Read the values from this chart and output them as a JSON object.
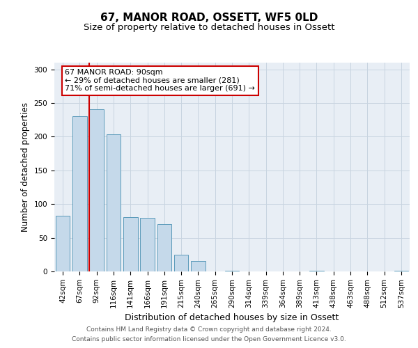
{
  "title": "67, MANOR ROAD, OSSETT, WF5 0LD",
  "subtitle": "Size of property relative to detached houses in Ossett",
  "xlabel": "Distribution of detached houses by size in Ossett",
  "ylabel": "Number of detached properties",
  "footnote1": "Contains HM Land Registry data © Crown copyright and database right 2024.",
  "footnote2": "Contains public sector information licensed under the Open Government Licence v3.0.",
  "annotation_title": "67 MANOR ROAD: 90sqm",
  "annotation_line1": "← 29% of detached houses are smaller (281)",
  "annotation_line2": "71% of semi-detached houses are larger (691) →",
  "bar_color": "#c5d9ea",
  "bar_edge_color": "#5b9aba",
  "vline_color": "#cc0000",
  "background_color": "#e8eef5",
  "categories": [
    "42sqm",
    "67sqm",
    "92sqm",
    "116sqm",
    "141sqm",
    "166sqm",
    "191sqm",
    "215sqm",
    "240sqm",
    "265sqm",
    "290sqm",
    "314sqm",
    "339sqm",
    "364sqm",
    "389sqm",
    "413sqm",
    "438sqm",
    "463sqm",
    "488sqm",
    "512sqm",
    "537sqm"
  ],
  "values": [
    83,
    230,
    241,
    204,
    81,
    80,
    70,
    25,
    16,
    0,
    1,
    0,
    0,
    0,
    0,
    1,
    0,
    0,
    0,
    0,
    1
  ],
  "ylim": [
    0,
    310
  ],
  "yticks": [
    0,
    50,
    100,
    150,
    200,
    250,
    300
  ],
  "vline_x": 1.57,
  "grid_color": "#c8d4e0",
  "title_fontsize": 11,
  "subtitle_fontsize": 9.5,
  "xlabel_fontsize": 9,
  "ylabel_fontsize": 8.5,
  "tick_fontsize": 7.5,
  "annotation_fontsize": 8,
  "footnote_fontsize": 6.5
}
